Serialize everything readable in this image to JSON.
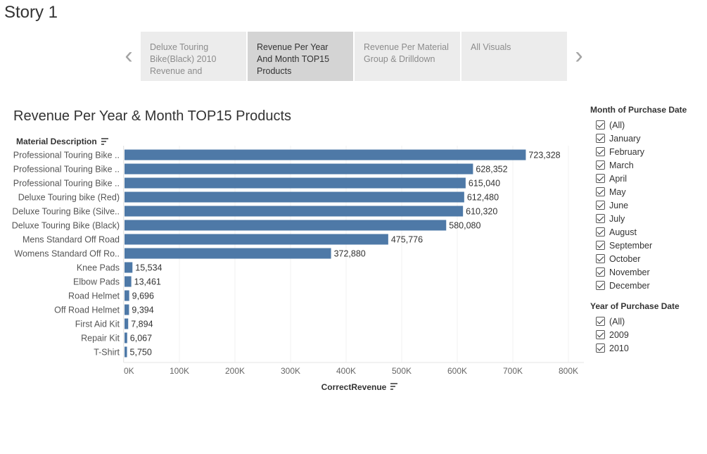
{
  "story": {
    "title": "Story 1"
  },
  "nav": {
    "prev_icon": "chevron-left-icon",
    "next_icon": "chevron-right-icon",
    "prev_glyph": "‹",
    "next_glyph": "›"
  },
  "tabs": [
    {
      "label": "Deluxe Touring Bike(Black) 2010 Revenue and",
      "active": false
    },
    {
      "label": "Revenue Per Year And Month TOP15 Products",
      "active": true
    },
    {
      "label": "Revenue Per Material Group & Drilldown",
      "active": false
    },
    {
      "label": "All Visuals",
      "active": false
    }
  ],
  "viz": {
    "title": "Revenue Per Year & Month TOP15 Products"
  },
  "chart_data": {
    "type": "bar",
    "orientation": "horizontal",
    "title": "Revenue Per Year & Month TOP15 Products",
    "ylabel": "Material Description",
    "xlabel": "CorrectRevenue",
    "categories": [
      "Professional Touring Bike ..",
      "Professional Touring Bike ..",
      "Professional Touring Bike ..",
      "Deluxe Touring bike (Red)",
      "Deluxe Touring Bike (Silve..",
      "Deluxe Touring Bike (Black)",
      "Mens Standard Off Road",
      "Womens Standard Off Ro..",
      "Knee Pads",
      "Elbow Pads",
      "Road Helmet",
      "Off Road Helmet",
      "First Aid Kit",
      "Repair Kit",
      "T-Shirt"
    ],
    "values": [
      723328,
      628352,
      615040,
      612480,
      610320,
      580080,
      475776,
      372880,
      15534,
      13461,
      9696,
      9394,
      7894,
      6067,
      5750
    ],
    "value_labels": [
      "723,328",
      "628,352",
      "615,040",
      "612,480",
      "610,320",
      "580,080",
      "475,776",
      "372,880",
      "15,534",
      "13,461",
      "9,696",
      "9,394",
      "7,894",
      "6,067",
      "5,750"
    ],
    "xlim": [
      0,
      800000
    ],
    "xticks": [
      0,
      100000,
      200000,
      300000,
      400000,
      500000,
      600000,
      700000,
      800000
    ],
    "xtick_labels": [
      "0K",
      "100K",
      "200K",
      "300K",
      "400K",
      "500K",
      "600K",
      "700K",
      "800K"
    ],
    "grid": true,
    "bar_color": "#4e79a7",
    "legend": "none"
  },
  "filters": {
    "month": {
      "title": "Month of Purchase Date",
      "items": [
        "(All)",
        "January",
        "February",
        "March",
        "April",
        "May",
        "June",
        "July",
        "August",
        "September",
        "October",
        "November",
        "December"
      ]
    },
    "year": {
      "title": "Year of Purchase Date",
      "items": [
        "(All)",
        "2009",
        "2010"
      ]
    }
  }
}
